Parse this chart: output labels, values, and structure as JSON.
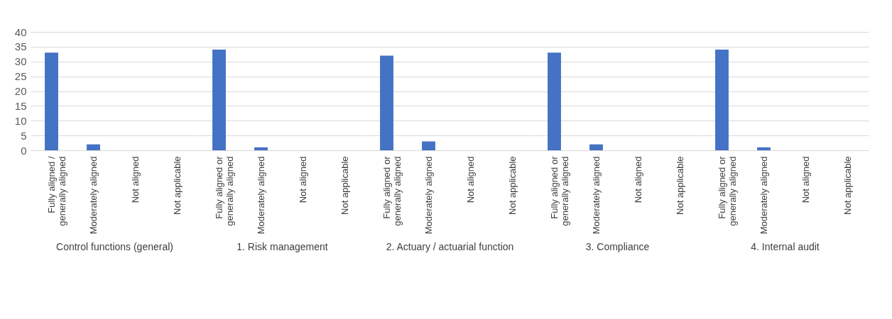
{
  "chart_data": [
    {
      "type": "bar",
      "xlabel": "Control functions (general)",
      "categories": [
        "Fully aligned / generally aligned",
        "Moderately aligned",
        "Not aligned",
        "Not applicable"
      ],
      "values": [
        33,
        2,
        0,
        0
      ],
      "color": "#4472c4",
      "ylim": [
        0,
        40
      ],
      "yticks": [
        0,
        5,
        10,
        15,
        20,
        25,
        30,
        35,
        40
      ],
      "grid": "y"
    },
    {
      "type": "bar",
      "xlabel": "1. Risk management",
      "categories": [
        "Fully aligned or generally aligned",
        "Moderately aligned",
        "Not aligned",
        "Not applicable"
      ],
      "values": [
        34,
        1,
        0,
        0
      ],
      "color": "#4472c4",
      "ylim": [
        0,
        40
      ],
      "yticks": [
        0,
        5,
        10,
        15,
        20,
        25,
        30,
        35,
        40
      ],
      "grid": "y",
      "tick_labels": "x"
    },
    {
      "type": "bar",
      "xlabel": "2. Actuary / actuarial function",
      "categories": [
        "Fully aligned or generally aligned",
        "Moderately aligned",
        "Not aligned",
        "Not applicable"
      ],
      "values": [
        32,
        3,
        0,
        0
      ],
      "color": "#4472c4",
      "ylim": [
        0,
        40
      ],
      "yticks": [
        0,
        5,
        10,
        15,
        20,
        25,
        30,
        35,
        40
      ],
      "grid": "y",
      "tick_labels": "x"
    },
    {
      "type": "bar",
      "xlabel": "3. Compliance",
      "categories": [
        "Fully aligned or generally aligned",
        "Moderately aligned",
        "Not aligned",
        "Not applicable"
      ],
      "values": [
        33,
        2,
        0,
        0
      ],
      "color": "#4472c4",
      "ylim": [
        0,
        40
      ],
      "yticks": [
        0,
        5,
        10,
        15,
        20,
        25,
        30,
        35,
        40
      ],
      "grid": "y",
      "tick_labels": "x"
    },
    {
      "type": "bar",
      "xlabel": "4. Internal audit",
      "categories": [
        "Fully aligned or generally aligned",
        "Moderately aligned",
        "Not aligned",
        "Not applicable"
      ],
      "values": [
        34,
        1,
        0,
        0
      ],
      "color": "#4472c4",
      "ylim": [
        0,
        40
      ],
      "yticks": [
        0,
        5,
        10,
        15,
        20,
        25,
        30,
        35,
        40
      ],
      "grid": "y",
      "tick_labels": "x"
    }
  ]
}
